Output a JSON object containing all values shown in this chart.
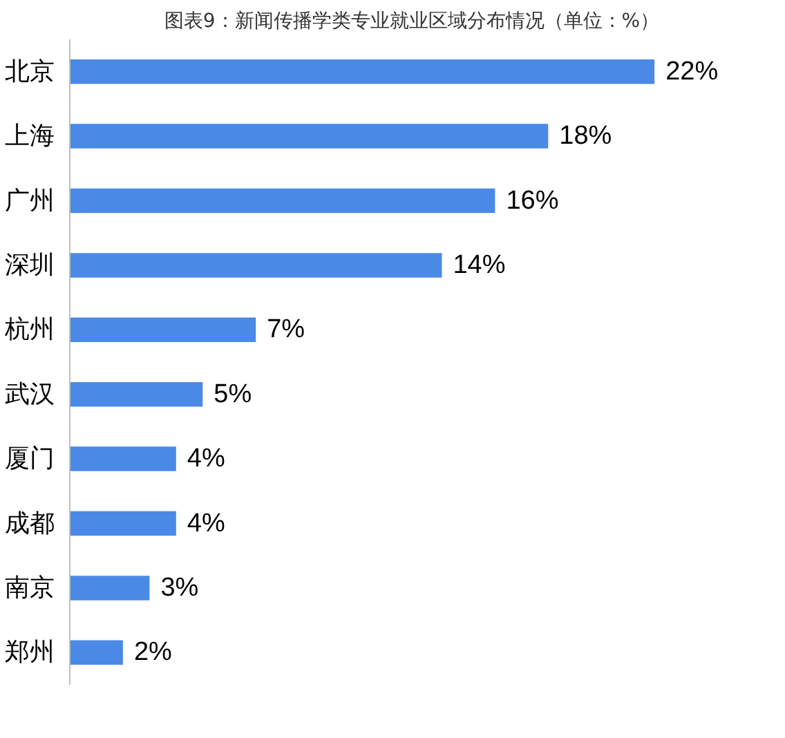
{
  "chart_data": {
    "type": "bar",
    "orientation": "horizontal",
    "title": "图表9：新闻传播学类专业就业区域分布情况（单位：%）",
    "categories": [
      "北京",
      "上海",
      "广州",
      "深圳",
      "杭州",
      "武汉",
      "厦门",
      "成都",
      "南京",
      "郑州"
    ],
    "values": [
      22,
      18,
      16,
      14,
      7,
      5,
      4,
      4,
      3,
      2
    ],
    "value_labels": [
      "22%",
      "18%",
      "16%",
      "14%",
      "7%",
      "5%",
      "4%",
      "4%",
      "3%",
      "2%"
    ],
    "color": "#4a8ae6",
    "grid": false
  }
}
